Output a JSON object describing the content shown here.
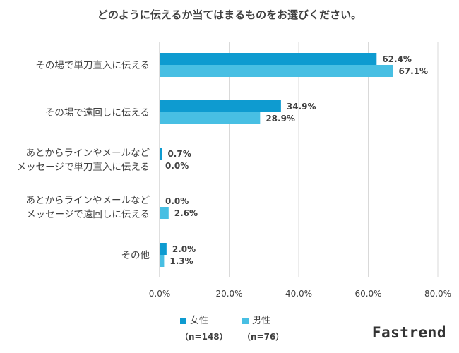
{
  "chart_data": {
    "type": "bar",
    "orientation": "horizontal",
    "title": "どのように伝えるか当てはまるものをお選びください。",
    "categories": [
      [
        "その場で単刀直入に伝える"
      ],
      [
        "その場で遠回しに伝える"
      ],
      [
        "あとからラインやメールなど",
        "メッセージで単刀直入に伝える"
      ],
      [
        "あとからラインやメールなど",
        "メッセージで遠回しに伝える"
      ],
      [
        "その他"
      ]
    ],
    "series": [
      {
        "name": "女性",
        "n_label": "（n=148）",
        "color": "#0e9bd0",
        "values": [
          62.4,
          34.9,
          0.7,
          0.0,
          2.0
        ],
        "labels": [
          "62.4%",
          "34.9%",
          "0.7%",
          "0.0%",
          "2.0%"
        ]
      },
      {
        "name": "男性",
        "n_label": "（n=76）",
        "color": "#48bfe3",
        "values": [
          67.1,
          28.9,
          0.0,
          2.6,
          1.3
        ],
        "labels": [
          "67.1%",
          "28.9%",
          "0.0%",
          "2.6%",
          "1.3%"
        ]
      }
    ],
    "xlim": [
      0,
      80
    ],
    "xticks": [
      0,
      20,
      40,
      60,
      80
    ],
    "xtick_labels": [
      "0.0%",
      "20.0%",
      "40.0%",
      "60.0%",
      "80.0%"
    ],
    "grid": true,
    "legend_position": "bottom"
  },
  "brand": "Fastrend"
}
